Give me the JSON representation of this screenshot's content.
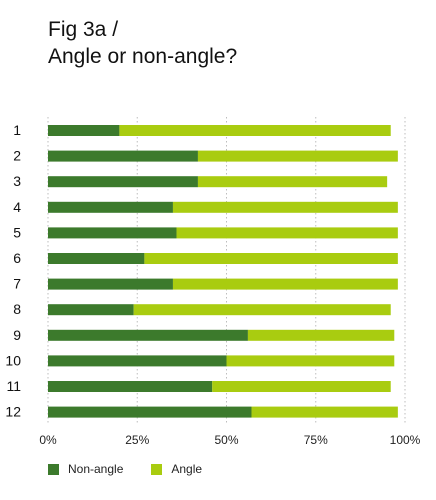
{
  "figure": {
    "title_line1": "Fig 3a /",
    "title_line2": "Angle or non-angle?"
  },
  "chart_data": {
    "type": "bar",
    "orientation": "horizontal",
    "stacked": true,
    "title": "Fig 3a / Angle or non-angle?",
    "categories": [
      "1",
      "2",
      "3",
      "4",
      "5",
      "6",
      "7",
      "8",
      "9",
      "10",
      "11",
      "12"
    ],
    "series": [
      {
        "name": "Non-angle",
        "color": "#3c7a2c",
        "values": [
          20,
          42,
          42,
          35,
          36,
          27,
          35,
          24,
          56,
          50,
          46,
          57
        ]
      },
      {
        "name": "Angle",
        "color": "#a9cc10",
        "values": [
          76,
          56,
          53,
          63,
          62,
          71,
          63,
          72,
          41,
          47,
          50,
          41
        ]
      }
    ],
    "xticks": [
      "0%",
      "25%",
      "50%",
      "75%",
      "100%"
    ],
    "xlim": [
      0,
      100
    ],
    "grid": "vertical-dashed",
    "legend_position": "bottom-left"
  }
}
